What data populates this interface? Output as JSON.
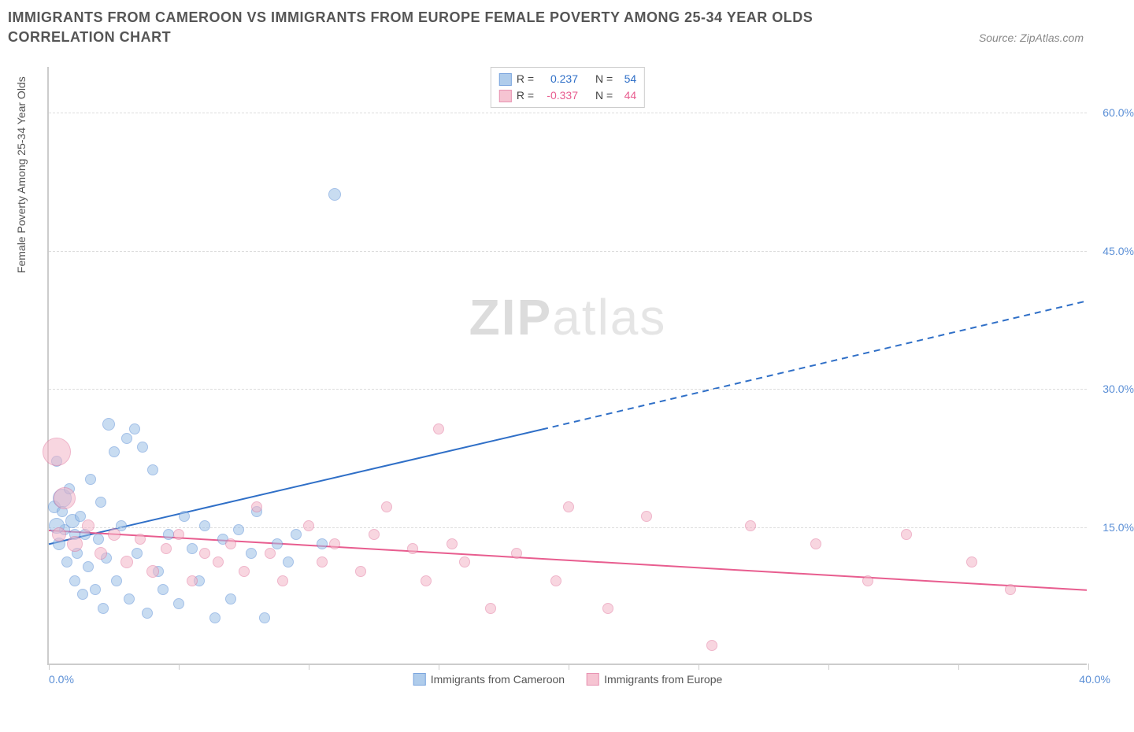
{
  "title": "IMMIGRANTS FROM CAMEROON VS IMMIGRANTS FROM EUROPE FEMALE POVERTY AMONG 25-34 YEAR OLDS CORRELATION CHART",
  "source_label": "Source: ZipAtlas.com",
  "y_axis_label": "Female Poverty Among 25-34 Year Olds",
  "watermark_zip": "ZIP",
  "watermark_atlas": "atlas",
  "chart": {
    "type": "scatter",
    "xlim": [
      0,
      40
    ],
    "ylim": [
      0,
      65
    ],
    "x_ticks": [
      0,
      5,
      10,
      15,
      20,
      25,
      30,
      35,
      40
    ],
    "x_tick_labels": {
      "0": "0.0%",
      "40": "40.0%"
    },
    "y_grid": [
      15,
      30,
      45,
      60
    ],
    "y_tick_labels": {
      "15": "15.0%",
      "30": "30.0%",
      "45": "45.0%",
      "60": "60.0%"
    },
    "background_color": "#ffffff",
    "grid_color": "#dddddd",
    "axis_color": "#cccccc"
  },
  "series": [
    {
      "id": "cameroon",
      "label": "Immigrants from Cameroon",
      "fill": "#9cc0e7",
      "fill_opacity": 0.55,
      "stroke": "#5b8fd6",
      "stroke_width": 1,
      "trend": {
        "x0": 0,
        "y0": 13,
        "x_solid_end": 19,
        "y_solid_end": 25.5,
        "x1": 40,
        "y1": 39.5,
        "color": "#2f6fc7",
        "width": 2
      },
      "stats": {
        "R": "0.237",
        "N": "54"
      },
      "points": [
        {
          "x": 0.2,
          "y": 17,
          "r": 8
        },
        {
          "x": 0.3,
          "y": 22,
          "r": 7
        },
        {
          "x": 0.4,
          "y": 13,
          "r": 8
        },
        {
          "x": 0.5,
          "y": 18,
          "r": 12
        },
        {
          "x": 0.6,
          "y": 14.5,
          "r": 7
        },
        {
          "x": 0.7,
          "y": 11,
          "r": 7
        },
        {
          "x": 0.8,
          "y": 19,
          "r": 7
        },
        {
          "x": 0.9,
          "y": 15.5,
          "r": 9
        },
        {
          "x": 1.0,
          "y": 9,
          "r": 7
        },
        {
          "x": 1.1,
          "y": 12,
          "r": 7
        },
        {
          "x": 1.2,
          "y": 16,
          "r": 7
        },
        {
          "x": 1.3,
          "y": 7.5,
          "r": 7
        },
        {
          "x": 1.4,
          "y": 14,
          "r": 7
        },
        {
          "x": 1.5,
          "y": 10.5,
          "r": 7
        },
        {
          "x": 1.6,
          "y": 20,
          "r": 7
        },
        {
          "x": 1.8,
          "y": 8,
          "r": 7
        },
        {
          "x": 1.9,
          "y": 13.5,
          "r": 7
        },
        {
          "x": 2.0,
          "y": 17.5,
          "r": 7
        },
        {
          "x": 2.1,
          "y": 6,
          "r": 7
        },
        {
          "x": 2.2,
          "y": 11.5,
          "r": 7
        },
        {
          "x": 2.3,
          "y": 26,
          "r": 8
        },
        {
          "x": 2.5,
          "y": 23,
          "r": 7
        },
        {
          "x": 2.6,
          "y": 9,
          "r": 7
        },
        {
          "x": 2.8,
          "y": 15,
          "r": 7
        },
        {
          "x": 3.0,
          "y": 24.5,
          "r": 7
        },
        {
          "x": 3.1,
          "y": 7,
          "r": 7
        },
        {
          "x": 3.3,
          "y": 25.5,
          "r": 7
        },
        {
          "x": 3.4,
          "y": 12,
          "r": 7
        },
        {
          "x": 3.6,
          "y": 23.5,
          "r": 7
        },
        {
          "x": 3.8,
          "y": 5.5,
          "r": 7
        },
        {
          "x": 4.0,
          "y": 21,
          "r": 7
        },
        {
          "x": 4.2,
          "y": 10,
          "r": 7
        },
        {
          "x": 4.4,
          "y": 8,
          "r": 7
        },
        {
          "x": 4.6,
          "y": 14,
          "r": 7
        },
        {
          "x": 5.0,
          "y": 6.5,
          "r": 7
        },
        {
          "x": 5.2,
          "y": 16,
          "r": 7
        },
        {
          "x": 5.5,
          "y": 12.5,
          "r": 7
        },
        {
          "x": 5.8,
          "y": 9,
          "r": 7
        },
        {
          "x": 6.0,
          "y": 15,
          "r": 7
        },
        {
          "x": 6.4,
          "y": 5,
          "r": 7
        },
        {
          "x": 6.7,
          "y": 13.5,
          "r": 7
        },
        {
          "x": 7.0,
          "y": 7,
          "r": 7
        },
        {
          "x": 7.3,
          "y": 14.5,
          "r": 7
        },
        {
          "x": 7.8,
          "y": 12,
          "r": 7
        },
        {
          "x": 8.0,
          "y": 16.5,
          "r": 7
        },
        {
          "x": 8.3,
          "y": 5,
          "r": 7
        },
        {
          "x": 8.8,
          "y": 13,
          "r": 7
        },
        {
          "x": 9.2,
          "y": 11,
          "r": 7
        },
        {
          "x": 9.5,
          "y": 14,
          "r": 7
        },
        {
          "x": 10.5,
          "y": 13,
          "r": 7
        },
        {
          "x": 11.0,
          "y": 51,
          "r": 8
        },
        {
          "x": 0.3,
          "y": 15,
          "r": 10
        },
        {
          "x": 0.5,
          "y": 16.5,
          "r": 7
        },
        {
          "x": 1.0,
          "y": 14,
          "r": 7
        }
      ]
    },
    {
      "id": "europe",
      "label": "Immigrants from Europe",
      "fill": "#f4b6c8",
      "fill_opacity": 0.55,
      "stroke": "#e279a0",
      "stroke_width": 1,
      "trend": {
        "x0": 0,
        "y0": 14.5,
        "x1": 40,
        "y1": 8,
        "color": "#e85d8f",
        "width": 2
      },
      "stats": {
        "R": "-0.337",
        "N": "44"
      },
      "points": [
        {
          "x": 0.3,
          "y": 23,
          "r": 18
        },
        {
          "x": 0.4,
          "y": 14,
          "r": 9
        },
        {
          "x": 0.6,
          "y": 18,
          "r": 14
        },
        {
          "x": 1.0,
          "y": 13,
          "r": 10
        },
        {
          "x": 1.5,
          "y": 15,
          "r": 8
        },
        {
          "x": 2.0,
          "y": 12,
          "r": 8
        },
        {
          "x": 2.5,
          "y": 14,
          "r": 8
        },
        {
          "x": 3.0,
          "y": 11,
          "r": 8
        },
        {
          "x": 3.5,
          "y": 13.5,
          "r": 7
        },
        {
          "x": 4.0,
          "y": 10,
          "r": 8
        },
        {
          "x": 4.5,
          "y": 12.5,
          "r": 7
        },
        {
          "x": 5.0,
          "y": 14,
          "r": 7
        },
        {
          "x": 5.5,
          "y": 9,
          "r": 7
        },
        {
          "x": 6.0,
          "y": 12,
          "r": 7
        },
        {
          "x": 6.5,
          "y": 11,
          "r": 7
        },
        {
          "x": 7.0,
          "y": 13,
          "r": 7
        },
        {
          "x": 7.5,
          "y": 10,
          "r": 7
        },
        {
          "x": 8.0,
          "y": 17,
          "r": 7
        },
        {
          "x": 8.5,
          "y": 12,
          "r": 7
        },
        {
          "x": 9.0,
          "y": 9,
          "r": 7
        },
        {
          "x": 10.0,
          "y": 15,
          "r": 7
        },
        {
          "x": 10.5,
          "y": 11,
          "r": 7
        },
        {
          "x": 11.0,
          "y": 13,
          "r": 7
        },
        {
          "x": 12.0,
          "y": 10,
          "r": 7
        },
        {
          "x": 12.5,
          "y": 14,
          "r": 7
        },
        {
          "x": 13.0,
          "y": 17,
          "r": 7
        },
        {
          "x": 14.0,
          "y": 12.5,
          "r": 7
        },
        {
          "x": 14.5,
          "y": 9,
          "r": 7
        },
        {
          "x": 15.0,
          "y": 25.5,
          "r": 7
        },
        {
          "x": 15.5,
          "y": 13,
          "r": 7
        },
        {
          "x": 16.0,
          "y": 11,
          "r": 7
        },
        {
          "x": 17.0,
          "y": 6,
          "r": 7
        },
        {
          "x": 18.0,
          "y": 12,
          "r": 7
        },
        {
          "x": 19.5,
          "y": 9,
          "r": 7
        },
        {
          "x": 20.0,
          "y": 17,
          "r": 7
        },
        {
          "x": 21.5,
          "y": 6,
          "r": 7
        },
        {
          "x": 23.0,
          "y": 16,
          "r": 7
        },
        {
          "x": 25.5,
          "y": 2,
          "r": 7
        },
        {
          "x": 27.0,
          "y": 15,
          "r": 7
        },
        {
          "x": 29.5,
          "y": 13,
          "r": 7
        },
        {
          "x": 31.5,
          "y": 9,
          "r": 7
        },
        {
          "x": 33.0,
          "y": 14,
          "r": 7
        },
        {
          "x": 35.5,
          "y": 11,
          "r": 7
        },
        {
          "x": 37.0,
          "y": 8,
          "r": 7
        }
      ]
    }
  ],
  "stats_labels": {
    "R": "R =",
    "N": "N ="
  }
}
